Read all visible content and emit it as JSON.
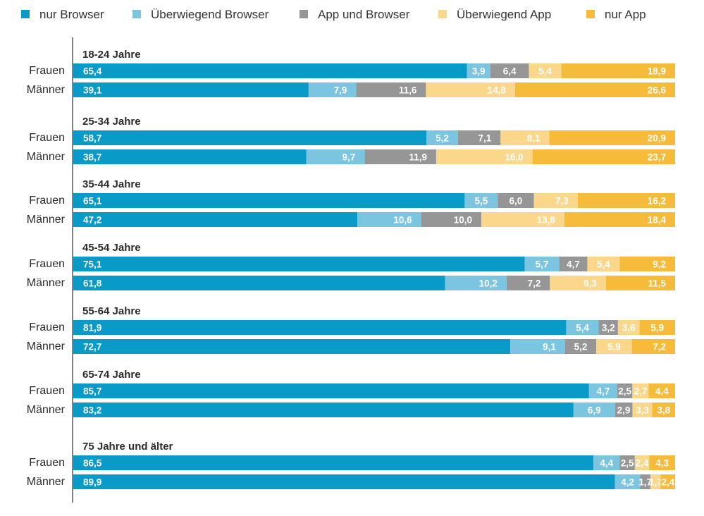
{
  "chart_data": {
    "type": "stacked-bar-horizontal",
    "unit": "percent",
    "legend": [
      {
        "name": "nur Browser",
        "color": "#0a9ac8"
      },
      {
        "name": "Überwiegend Browser",
        "color": "#7cc5e1"
      },
      {
        "name": "App und Browser",
        "color": "#969696"
      },
      {
        "name": "Überwiegend App",
        "color": "#fbd78c"
      },
      {
        "name": "nur App",
        "color": "#f6bb3a"
      }
    ],
    "groups": [
      {
        "title": "18-24 Jahre",
        "rows": [
          {
            "label": "Frauen",
            "values": [
              65.4,
              3.9,
              6.4,
              5.4,
              18.9
            ],
            "labels": [
              "65,4",
              "3,9",
              "6,4",
              "5,4",
              "18,9"
            ]
          },
          {
            "label": "Männer",
            "values": [
              39.1,
              7.9,
              11.6,
              14.8,
              26.6
            ],
            "labels": [
              "39,1",
              "7,9",
              "11,6",
              "14,8",
              "26,6"
            ]
          }
        ]
      },
      {
        "title": "25-34 Jahre",
        "rows": [
          {
            "label": "Frauen",
            "values": [
              58.7,
              5.2,
              7.1,
              8.1,
              20.9
            ],
            "labels": [
              "58,7",
              "5,2",
              "7,1",
              "8,1",
              "20,9"
            ]
          },
          {
            "label": "Männer",
            "values": [
              38.7,
              9.7,
              11.9,
              16.0,
              23.7
            ],
            "labels": [
              "38,7",
              "9,7",
              "11,9",
              "16,0",
              "23,7"
            ]
          }
        ]
      },
      {
        "title": "35-44 Jahre",
        "rows": [
          {
            "label": "Frauen",
            "values": [
              65.1,
              5.5,
              6.0,
              7.3,
              16.2
            ],
            "labels": [
              "65,1",
              "5,5",
              "6,0",
              "7,3",
              "16,2"
            ]
          },
          {
            "label": "Männer",
            "values": [
              47.2,
              10.6,
              10.0,
              13.8,
              18.4
            ],
            "labels": [
              "47,2",
              "10,6",
              "10,0",
              "13,8",
              "18,4"
            ]
          }
        ]
      },
      {
        "title": "45-54 Jahre",
        "rows": [
          {
            "label": "Frauen",
            "values": [
              75.1,
              5.7,
              4.7,
              5.4,
              9.2
            ],
            "labels": [
              "75,1",
              "5,7",
              "4,7",
              "5,4",
              "9,2"
            ]
          },
          {
            "label": "Männer",
            "values": [
              61.8,
              10.2,
              7.2,
              9.3,
              11.5
            ],
            "labels": [
              "61,8",
              "10,2",
              "7,2",
              "9,3",
              "11,5"
            ]
          }
        ]
      },
      {
        "title": "55-64 Jahre",
        "rows": [
          {
            "label": "Frauen",
            "values": [
              81.9,
              5.4,
              3.2,
              3.6,
              5.9
            ],
            "labels": [
              "81,9",
              "5,4",
              "3,2",
              "3,6",
              "5,9"
            ]
          },
          {
            "label": "Männer",
            "values": [
              72.7,
              9.1,
              5.2,
              5.9,
              7.2
            ],
            "labels": [
              "72,7",
              "9,1",
              "5,2",
              "5,9",
              "7,2"
            ]
          }
        ]
      },
      {
        "title": "65-74 Jahre",
        "rows": [
          {
            "label": "Frauen",
            "values": [
              85.7,
              4.7,
              2.5,
              2.7,
              4.4
            ],
            "labels": [
              "85,7",
              "4,7",
              "2,5",
              "2,7",
              "4,4"
            ]
          },
          {
            "label": "Männer",
            "values": [
              83.2,
              6.9,
              2.9,
              3.3,
              3.8
            ],
            "labels": [
              "83,2",
              "6,9",
              "2,9",
              "3,3",
              "3,8"
            ]
          }
        ]
      },
      {
        "title": "75 Jahre und älter",
        "rows": [
          {
            "label": "Frauen",
            "values": [
              86.5,
              4.4,
              2.5,
              2.4,
              4.3
            ],
            "labels": [
              "86,5",
              "4,4",
              "2,5",
              "2,4",
              "4,3"
            ]
          },
          {
            "label": "Männer",
            "values": [
              89.9,
              4.2,
              1.7,
              1.7,
              2.4
            ],
            "labels": [
              "89,9",
              "4,2",
              "1,7",
              "1,7",
              "2,4"
            ]
          }
        ]
      }
    ]
  }
}
